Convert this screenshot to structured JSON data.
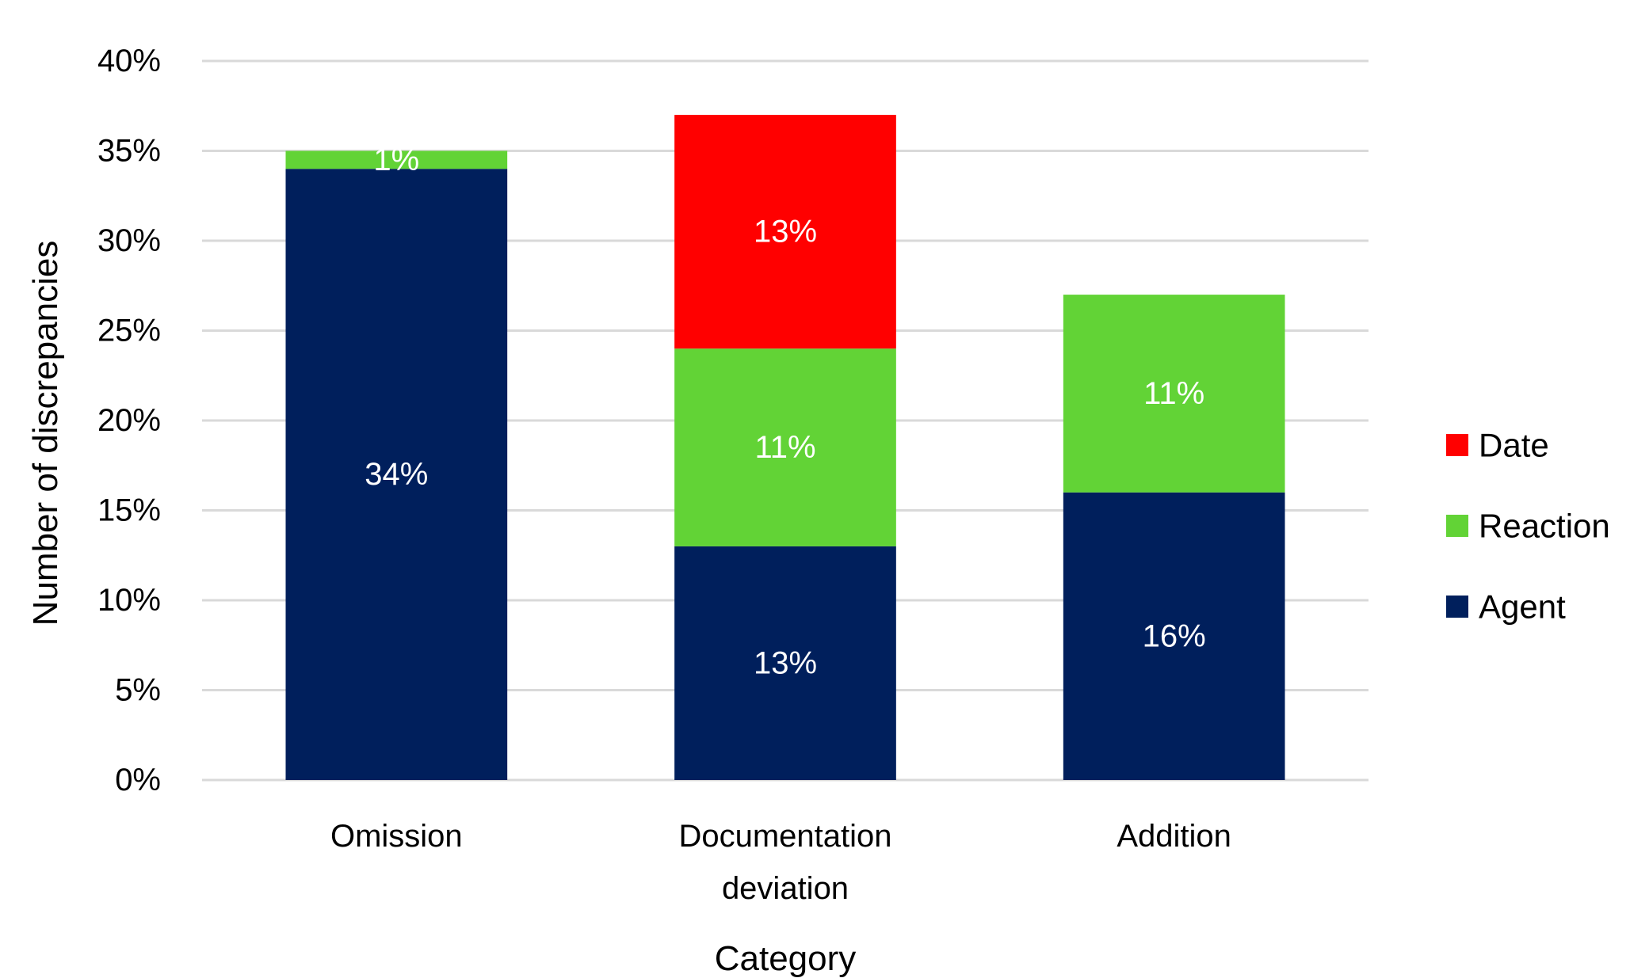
{
  "chart_data": {
    "type": "bar",
    "stacked": true,
    "categories": [
      [
        "Omission"
      ],
      [
        "Documentation",
        "deviation"
      ],
      [
        "Addition"
      ]
    ],
    "series": [
      {
        "name": "Agent",
        "color": "#001f5c",
        "values": [
          34,
          13,
          16
        ],
        "labels": [
          "34%",
          "13%",
          "16%"
        ]
      },
      {
        "name": "Reaction",
        "color": "#62d336",
        "values": [
          1,
          11,
          11
        ],
        "labels": [
          "1%",
          "11%",
          "11%"
        ]
      },
      {
        "name": "Date",
        "color": "#ff0000",
        "values": [
          null,
          13,
          null
        ],
        "labels": [
          null,
          "13%",
          null
        ]
      }
    ],
    "xlabel": "Category",
    "ylabel": "Number of discrepancies",
    "ylim": [
      0,
      40
    ],
    "yticks": [
      "0%",
      "5%",
      "10%",
      "15%",
      "20%",
      "25%",
      "30%",
      "35%",
      "40%"
    ],
    "grid": true,
    "legend_position": "right",
    "legend_order": [
      "Date",
      "Reaction",
      "Agent"
    ]
  }
}
